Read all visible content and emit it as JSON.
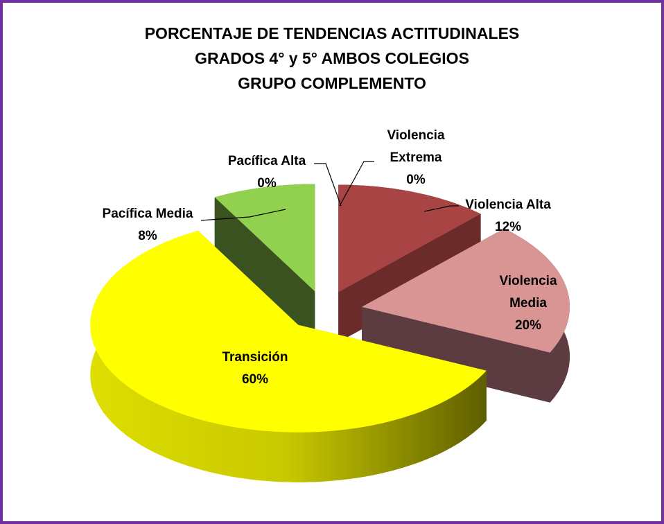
{
  "chart_data": {
    "type": "pie3d",
    "title": [
      "PORCENTAJE DE TENDENCIAS ACTITUDINALES",
      "GRADOS 4° y 5° AMBOS COLEGIOS",
      "GRUPO COMPLEMENTO"
    ],
    "categories": [
      "Violencia Extrema",
      "Violencia Alta",
      "Violencia Media",
      "Transición",
      "Pacífica Media",
      "Pacífica Alta"
    ],
    "values": [
      0,
      12,
      20,
      60,
      8,
      0
    ],
    "value_labels": [
      "0%",
      "12%",
      "20%",
      "60%",
      "8%",
      "0%"
    ],
    "colors": [
      "#8b1a1a",
      "#a84444",
      "#d99594",
      "#ffff00",
      "#92d050",
      "#4f7a28"
    ],
    "side_colors": [
      "#5a1010",
      "#6b2b2b",
      "#5c3c40",
      "#6e6e00",
      "#3a5220",
      "#2c4416"
    ]
  }
}
